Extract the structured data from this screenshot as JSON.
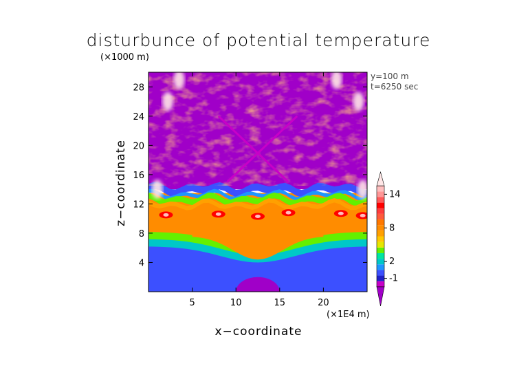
{
  "chart_data": {
    "type": "heatmap",
    "title": "disturbunce of potential temperature",
    "xlabel": "x−coordinate",
    "ylabel": "z−coordinate",
    "x_unit": "(×1E4 m)",
    "z_unit": "(×1000 m)",
    "annotations": [
      "y=100 m",
      "t=6250 sec"
    ],
    "xlim": [
      0,
      25
    ],
    "ylim": [
      0,
      30
    ],
    "x_ticks": [
      5,
      10,
      15,
      20
    ],
    "y_ticks": [
      4,
      8,
      12,
      16,
      20,
      24,
      28
    ],
    "colorbar": {
      "tick_labels": [
        "-1",
        "2",
        "8",
        "14"
      ],
      "levels": [
        -3,
        -2,
        -1,
        0,
        1,
        2,
        3,
        4,
        5,
        6,
        7,
        8,
        9,
        10,
        11,
        12,
        13,
        14,
        15,
        16
      ],
      "colors": [
        "#a000c8",
        "#c800c8",
        "#2020c8",
        "#3c50ff",
        "#1e96ff",
        "#00c8c8",
        "#00e6a0",
        "#64f000",
        "#e6e600",
        "#ffc800",
        "#ffa000",
        "#ff8c00",
        "#ff7800",
        "#ff5a3c",
        "#ff3c3c",
        "#ff0000",
        "#ff5a5a",
        "#ff9696",
        "#ffbebe",
        "#ffe6e6"
      ]
    },
    "regions": [
      {
        "feature": "upper layer",
        "z_range": [
          14,
          30
        ],
        "dominant_level": -3
      },
      {
        "feature": "warm band",
        "z_range": [
          7.5,
          13.5
        ],
        "dominant_level": 8
      },
      {
        "feature": "lower layer",
        "z_range": [
          0,
          7.5
        ],
        "dominant_level": 0
      },
      {
        "feature": "cold bubble at surface",
        "x_range": [
          10,
          15
        ],
        "z_range": [
          0,
          2
        ],
        "dominant_level": -3
      }
    ]
  }
}
